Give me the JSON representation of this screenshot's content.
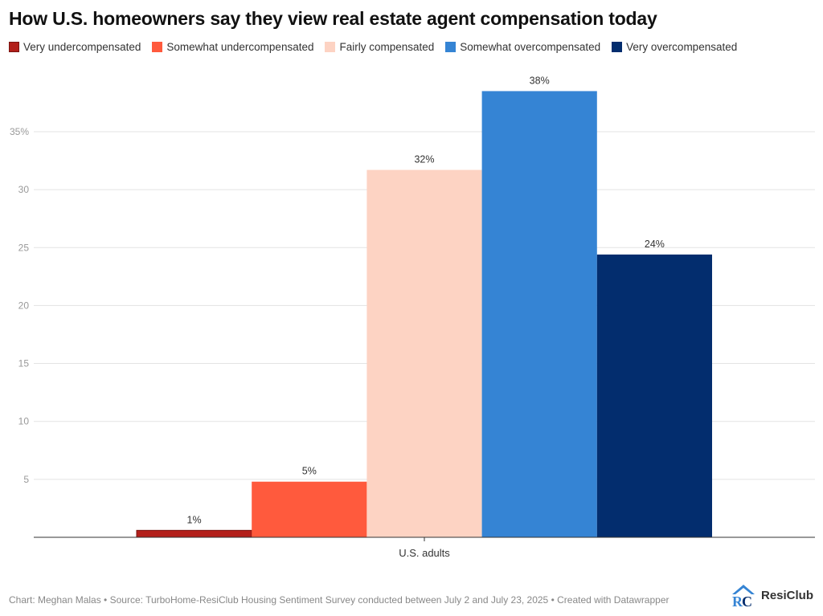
{
  "title": "How U.S. homeowners say they view real estate agent compensation today",
  "legend": [
    {
      "label": "Very undercompensated",
      "color": "#b21f1a"
    },
    {
      "label": "Somewhat undercompensated",
      "color": "#ff5a3d"
    },
    {
      "label": "Fairly compensated",
      "color": "#fdd3c3"
    },
    {
      "label": "Somewhat overcompensated",
      "color": "#3584d4"
    },
    {
      "label": "Very overcompensated",
      "color": "#032d6e"
    }
  ],
  "chart_data": {
    "type": "bar",
    "categories": [
      "U.S. adults"
    ],
    "series": [
      {
        "name": "Very undercompensated",
        "values": [
          1
        ],
        "color": "#b21f1a",
        "label": "1%"
      },
      {
        "name": "Somewhat undercompensated",
        "values": [
          5
        ],
        "color": "#ff5a3d",
        "label": "5%"
      },
      {
        "name": "Fairly compensated",
        "values": [
          32
        ],
        "color": "#fdd3c3",
        "label": "32%"
      },
      {
        "name": "Somewhat overcompensated",
        "values": [
          38
        ],
        "color": "#3584d4",
        "label": "38%"
      },
      {
        "name": "Very overcompensated",
        "values": [
          24
        ],
        "color": "#032d6e",
        "label": "24%"
      }
    ],
    "plotted_values": [
      0.6,
      4.8,
      31.7,
      38.5,
      24.4
    ],
    "yticks": [
      5,
      10,
      15,
      20,
      25,
      30,
      35
    ],
    "ytick_labels": [
      "5",
      "10",
      "15",
      "20",
      "25",
      "30",
      "35%"
    ],
    "ylim": [
      0,
      38.5
    ],
    "grid": true,
    "legend_position": "top-left"
  },
  "footer": "Chart: Meghan Malas • Source: TurboHome-ResiClub Housing Sentiment Survey conducted between July 2 and July 23, 2025 • Created with Datawrapper",
  "logo": {
    "text": "ResiClub",
    "icon": "resiclub-logo-icon"
  }
}
